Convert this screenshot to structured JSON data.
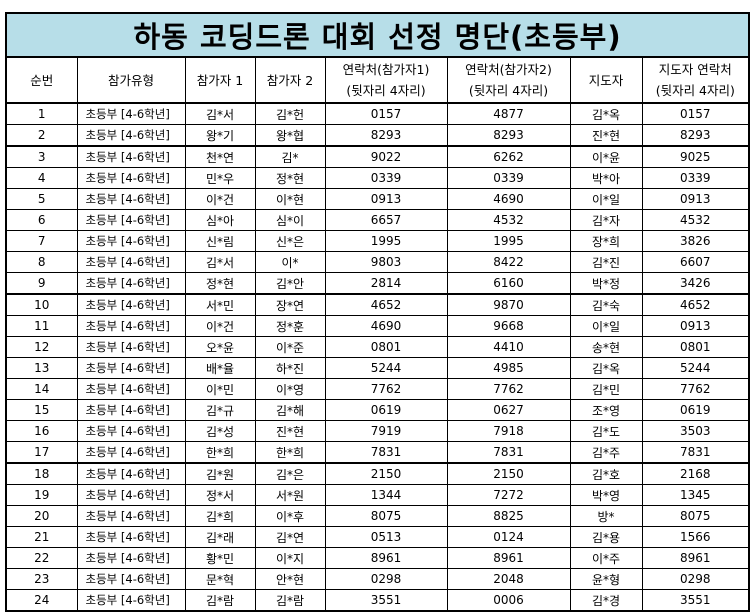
{
  "title": "하동 코딩드론 대회 선정 명단(초등부)",
  "headers": {
    "no": "순번",
    "type": "참가유형",
    "p1": "참가자 1",
    "p2": "참가자 2",
    "c1_line1": "연락처(참가자1)",
    "c1_line2": "(뒷자리 4자리)",
    "c2_line1": "연락처(참가자2)",
    "c2_line2": "(뒷자리 4자리)",
    "coach": "지도자",
    "cc_line1": "지도자 연락처",
    "cc_line2": "(뒷자리 4자리)"
  },
  "rows": [
    [
      "1",
      "초등부 [4-6학년]",
      "김*서",
      "김*헌",
      "0157",
      "4877",
      "김*옥",
      "0157"
    ],
    [
      "2",
      "초등부 [4-6학년]",
      "왕*기",
      "왕*협",
      "8293",
      "8293",
      "진*현",
      "8293"
    ],
    [
      "3",
      "초등부 [4-6학년]",
      "천*연",
      "김*",
      "9022",
      "6262",
      "이*윤",
      "9025"
    ],
    [
      "4",
      "초등부 [4-6학년]",
      "민*우",
      "정*현",
      "0339",
      "0339",
      "박*아",
      "0339"
    ],
    [
      "5",
      "초등부 [4-6학년]",
      "이*건",
      "이*현",
      "0913",
      "4690",
      "이*일",
      "0913"
    ],
    [
      "6",
      "초등부 [4-6학년]",
      "심*아",
      "심*이",
      "6657",
      "4532",
      "김*자",
      "4532"
    ],
    [
      "7",
      "초등부 [4-6학년]",
      "신*림",
      "신*은",
      "1995",
      "1995",
      "장*희",
      "3826"
    ],
    [
      "8",
      "초등부 [4-6학년]",
      "김*서",
      "이*",
      "9803",
      "8422",
      "김*진",
      "6607"
    ],
    [
      "9",
      "초등부 [4-6학년]",
      "정*현",
      "김*안",
      "2814",
      "6160",
      "박*정",
      "3426"
    ],
    [
      "10",
      "초등부 [4-6학년]",
      "서*민",
      "장*연",
      "4652",
      "9870",
      "김*숙",
      "4652"
    ],
    [
      "11",
      "초등부 [4-6학년]",
      "이*건",
      "정*훈",
      "4690",
      "9668",
      "이*일",
      "0913"
    ],
    [
      "12",
      "초등부 [4-6학년]",
      "오*윤",
      "이*준",
      "0801",
      "4410",
      "송*현",
      "0801"
    ],
    [
      "13",
      "초등부 [4-6학년]",
      "배*율",
      "하*진",
      "5244",
      "4985",
      "김*옥",
      "5244"
    ],
    [
      "14",
      "초등부 [4-6학년]",
      "이*민",
      "이*영",
      "7762",
      "7762",
      "김*민",
      "7762"
    ],
    [
      "15",
      "초등부 [4-6학년]",
      "김*규",
      "김*해",
      "0619",
      "0627",
      "조*영",
      "0619"
    ],
    [
      "16",
      "초등부 [4-6학년]",
      "김*성",
      "진*현",
      "7919",
      "7918",
      "김*도",
      "3503"
    ],
    [
      "17",
      "초등부 [4-6학년]",
      "한*희",
      "한*희",
      "7831",
      "7831",
      "김*주",
      "7831"
    ],
    [
      "18",
      "초등부 [4-6학년]",
      "김*원",
      "김*은",
      "2150",
      "2150",
      "김*호",
      "2168"
    ],
    [
      "19",
      "초등부 [4-6학년]",
      "정*서",
      "서*원",
      "1344",
      "7272",
      "박*영",
      "1345"
    ],
    [
      "20",
      "초등부 [4-6학년]",
      "김*희",
      "이*후",
      "8075",
      "8825",
      "방*",
      "8075"
    ],
    [
      "21",
      "초등부 [4-6학년]",
      "김*래",
      "김*연",
      "0513",
      "0124",
      "김*용",
      "1566"
    ],
    [
      "22",
      "초등부 [4-6학년]",
      "황*민",
      "이*지",
      "8961",
      "8961",
      "이*주",
      "8961"
    ],
    [
      "23",
      "초등부 [4-6학년]",
      "문*혁",
      "안*현",
      "0298",
      "2048",
      "윤*형",
      "0298"
    ],
    [
      "24",
      "초등부 [4-6학년]",
      "김*람",
      "김*람",
      "3551",
      "0006",
      "김*경",
      "3551"
    ]
  ],
  "colors": {
    "title_bg": "#b7dee8"
  }
}
